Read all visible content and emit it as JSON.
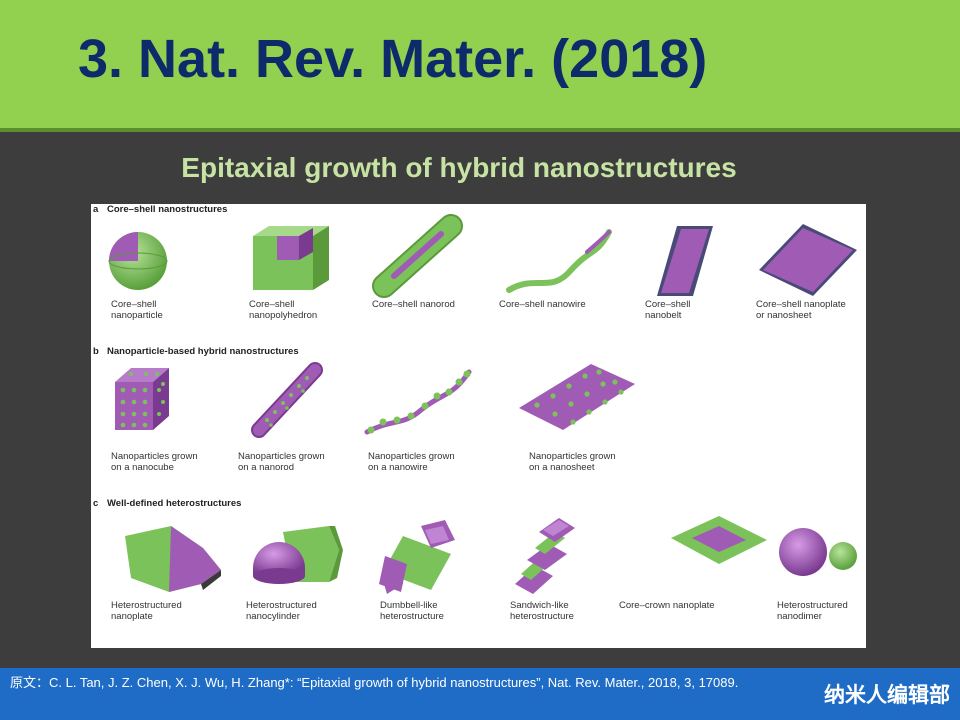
{
  "slide": {
    "title": "3. Nat. Rev. Mater.  (2018)",
    "subtitle": "Epitaxial growth of hybrid nanostructures"
  },
  "figure": {
    "sections": [
      {
        "label": "a",
        "heading": "Core–shell nanostructures",
        "items": [
          {
            "line1": "Core–shell",
            "line2": "nanoparticle"
          },
          {
            "line1": "Core–shell",
            "line2": "nanopolyhedron"
          },
          {
            "line1": "Core–shell nanorod",
            "line2": ""
          },
          {
            "line1": "Core–shell nanowire",
            "line2": ""
          },
          {
            "line1": "Core–shell",
            "line2": "nanobelt"
          },
          {
            "line1": "Core–shell nanoplate",
            "line2": "or nanosheet"
          }
        ]
      },
      {
        "label": "b",
        "heading": "Nanoparticle-based hybrid nanostructures",
        "items": [
          {
            "line1": "Nanoparticles grown",
            "line2": "on a nanocube"
          },
          {
            "line1": "Nanoparticles grown",
            "line2": "on a nanorod"
          },
          {
            "line1": "Nanoparticles grown",
            "line2": "on a nanowire"
          },
          {
            "line1": "Nanoparticles grown",
            "line2": "on a nanosheet"
          }
        ]
      },
      {
        "label": "c",
        "heading": "Well-defined heterostructures",
        "items": [
          {
            "line1": "Heterostructured",
            "line2": "nanoplate"
          },
          {
            "line1": "Heterostructured",
            "line2": "nanocylinder"
          },
          {
            "line1": "Dumbbell-like",
            "line2": "heterostructure"
          },
          {
            "line1": "Sandwich-like",
            "line2": "heterostructure"
          },
          {
            "line1": "Core–crown nanoplate",
            "line2": ""
          },
          {
            "line1": "Heterostructured",
            "line2": "nanodimer"
          }
        ]
      }
    ]
  },
  "footer": {
    "citation": "原文：C. L. Tan, J. Z. Chen, X. J. Wu, H. Zhang*: “Epitaxial growth of hybrid nanostructures”, Nat. Rev. Mater., 2018, 3, 17089.",
    "brand": "纳米人编辑部"
  },
  "colors": {
    "header_bg": "#92d050",
    "title_text": "#0f2a6b",
    "slide_bg": "#3d3d3d",
    "footer_bg": "#1f6cc6",
    "green": "#7cc25a",
    "purple": "#a05bb5"
  }
}
